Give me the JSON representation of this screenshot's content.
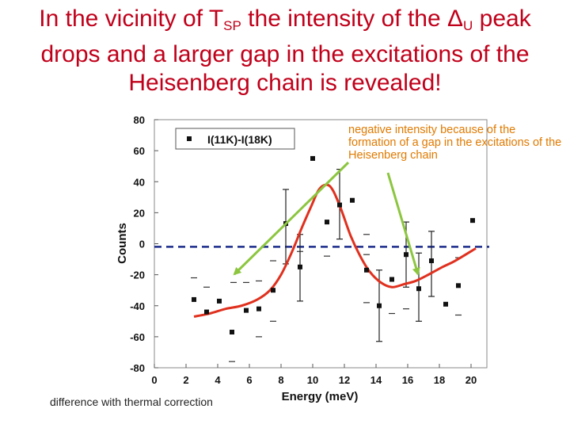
{
  "slide": {
    "title_parts": [
      "In the vicinity of T",
      "SP",
      " the intensity of the Δ",
      "U",
      " peak"
    ],
    "title_line2": "drops and a larger gap in the excitations of the",
    "title_line3": "Heisenberg chain is revealed!",
    "footnote": "difference with thermal correction",
    "annotation": "negative intensity because of the formation of a gap in the excitations of the Heisenberg chain"
  },
  "colors": {
    "title": "#c0001a",
    "fit": "#e0301e",
    "baseline": "#1a2a8a",
    "arrow": "#8cc63f",
    "annotation": "#e07a00"
  },
  "chart_data": {
    "type": "scatter",
    "xlabel": "Energy (meV)",
    "ylabel": "Counts",
    "xlim": [
      0,
      21
    ],
    "ylim": [
      -80,
      80
    ],
    "xticks": [
      0,
      2,
      4,
      6,
      8,
      10,
      12,
      14,
      16,
      18,
      20
    ],
    "yticks": [
      80,
      60,
      40,
      20,
      0,
      -20,
      -40,
      -60,
      -80
    ],
    "legend": {
      "label": "I(11K)-I(18K)",
      "placement": "top-left"
    },
    "baseline_y": -2,
    "points": [
      {
        "x": 2.5,
        "y": -36
      },
      {
        "x": 3.3,
        "y": -44
      },
      {
        "x": 4.1,
        "y": -37
      },
      {
        "x": 4.9,
        "y": -57
      },
      {
        "x": 5.8,
        "y": -43
      },
      {
        "x": 6.6,
        "y": -42
      },
      {
        "x": 7.5,
        "y": -30
      },
      {
        "x": 8.3,
        "y": 13
      },
      {
        "x": 9.2,
        "y": -15
      },
      {
        "x": 10.0,
        "y": 55
      },
      {
        "x": 10.9,
        "y": 14
      },
      {
        "x": 11.7,
        "y": 25
      },
      {
        "x": 12.5,
        "y": 28
      },
      {
        "x": 13.4,
        "y": -17
      },
      {
        "x": 14.2,
        "y": -40
      },
      {
        "x": 15.0,
        "y": -23
      },
      {
        "x": 15.9,
        "y": -7
      },
      {
        "x": 16.7,
        "y": -29
      },
      {
        "x": 17.5,
        "y": -11
      },
      {
        "x": 18.4,
        "y": -39
      },
      {
        "x": 19.2,
        "y": -27
      },
      {
        "x": 20.1,
        "y": 15
      }
    ],
    "error_bars": [
      {
        "x": 9.2,
        "low": -37,
        "high": 6
      },
      {
        "x": 8.3,
        "low": -13,
        "high": 35
      },
      {
        "x": 11.7,
        "low": 3,
        "high": 48
      },
      {
        "x": 14.2,
        "low": -63,
        "high": -17
      },
      {
        "x": 16.7,
        "low": -50,
        "high": -6
      },
      {
        "x": 17.5,
        "low": -34,
        "high": 8
      },
      {
        "x": 15.9,
        "low": -28,
        "high": 14
      }
    ],
    "dashes": [
      {
        "x": 2.5,
        "y": -22
      },
      {
        "x": 3.3,
        "y": -28
      },
      {
        "x": 5.0,
        "y": -25
      },
      {
        "x": 5.8,
        "y": -25
      },
      {
        "x": 4.9,
        "y": -76
      },
      {
        "x": 6.6,
        "y": -24
      },
      {
        "x": 6.6,
        "y": -60
      },
      {
        "x": 7.5,
        "y": -50
      },
      {
        "x": 7.5,
        "y": -11
      },
      {
        "x": 9.2,
        "y": -5
      },
      {
        "x": 10.9,
        "y": -8
      },
      {
        "x": 13.4,
        "y": -38
      },
      {
        "x": 13.4,
        "y": -7
      },
      {
        "x": 13.4,
        "y": 6
      },
      {
        "x": 15.0,
        "y": -45
      },
      {
        "x": 15.9,
        "y": -42
      },
      {
        "x": 19.2,
        "y": -9
      },
      {
        "x": 19.2,
        "y": -46
      }
    ],
    "fit_curve": [
      [
        2.5,
        -47
      ],
      [
        3.5,
        -45
      ],
      [
        4.5,
        -42
      ],
      [
        5.5,
        -40
      ],
      [
        6.5,
        -36
      ],
      [
        7.3,
        -30
      ],
      [
        8.0,
        -20
      ],
      [
        8.7,
        -5
      ],
      [
        9.3,
        10
      ],
      [
        9.9,
        24
      ],
      [
        10.4,
        35
      ],
      [
        10.9,
        38
      ],
      [
        11.3,
        34
      ],
      [
        11.8,
        22
      ],
      [
        12.4,
        5
      ],
      [
        13.0,
        -8
      ],
      [
        13.6,
        -18
      ],
      [
        14.3,
        -25
      ],
      [
        15.0,
        -28
      ],
      [
        15.8,
        -26
      ],
      [
        16.5,
        -24
      ],
      [
        17.3,
        -20
      ],
      [
        18.2,
        -15
      ],
      [
        19.0,
        -11
      ],
      [
        20.3,
        -3
      ]
    ]
  }
}
